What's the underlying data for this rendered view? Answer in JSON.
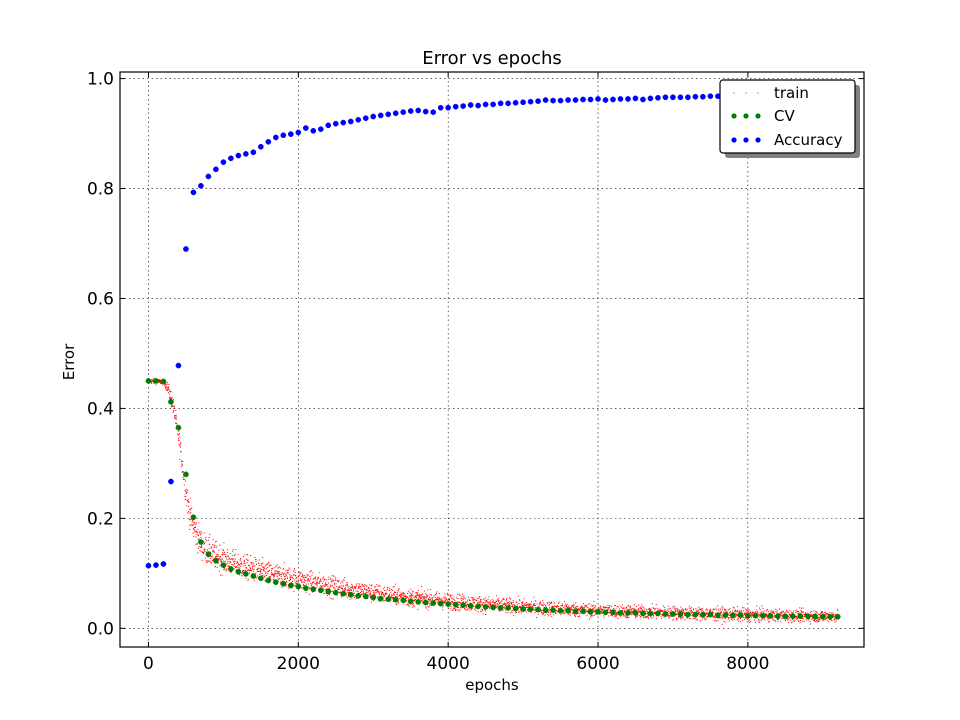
{
  "chart_data": {
    "type": "scatter",
    "title": "Error vs epochs",
    "xlabel": "epochs",
    "ylabel": "Error",
    "xlim": [
      -380,
      9550
    ],
    "ylim": [
      -0.034,
      1.012
    ],
    "xticks": [
      0,
      2000,
      4000,
      6000,
      8000
    ],
    "xtick_labels": [
      "0",
      "2000",
      "4000",
      "6000",
      "8000"
    ],
    "yticks": [
      0.0,
      0.2,
      0.4,
      0.6,
      0.8,
      1.0
    ],
    "ytick_labels": [
      "0.0",
      "0.2",
      "0.4",
      "0.6",
      "0.8",
      "1.0"
    ],
    "grid": true,
    "legend_position": "top-right",
    "series": [
      {
        "name": "train",
        "color": "#ff0000",
        "marker": "point",
        "x": [
          0,
          100,
          200,
          250,
          300,
          350,
          400,
          450,
          500,
          550,
          600,
          650,
          700,
          800,
          900,
          1000,
          1200,
          1400,
          1600,
          1800,
          2000,
          2500,
          3000,
          3500,
          4000,
          4500,
          5000,
          5500,
          6000,
          6500,
          7000,
          7500,
          8000,
          8500,
          9000,
          9200
        ],
        "y": [
          0.45,
          0.449,
          0.448,
          0.44,
          0.42,
          0.39,
          0.35,
          0.3,
          0.25,
          0.21,
          0.185,
          0.17,
          0.155,
          0.14,
          0.132,
          0.125,
          0.115,
          0.107,
          0.1,
          0.094,
          0.088,
          0.075,
          0.064,
          0.056,
          0.049,
          0.043,
          0.039,
          0.035,
          0.032,
          0.03,
          0.028,
          0.026,
          0.024,
          0.023,
          0.022,
          0.022
        ],
        "spread": [
          0.004,
          0.004,
          0.004,
          0.008,
          0.012,
          0.014,
          0.016,
          0.018,
          0.02,
          0.022,
          0.022,
          0.022,
          0.022,
          0.022,
          0.021,
          0.02,
          0.019,
          0.018,
          0.017,
          0.017,
          0.016,
          0.015,
          0.014,
          0.013,
          0.012,
          0.012,
          0.011,
          0.011,
          0.01,
          0.01,
          0.01,
          0.01,
          0.01,
          0.009,
          0.009,
          0.009
        ]
      },
      {
        "name": "CV",
        "color": "#007f00",
        "marker": "circle",
        "x": [
          0,
          100,
          200,
          300,
          400,
          500,
          600,
          700,
          800,
          900,
          1000,
          1100,
          1200,
          1300,
          1400,
          1500,
          1600,
          1700,
          1800,
          1900,
          2000,
          2100,
          2200,
          2300,
          2400,
          2500,
          2600,
          2700,
          2800,
          2900,
          3000,
          3100,
          3200,
          3300,
          3400,
          3500,
          3600,
          3700,
          3800,
          3900,
          4000,
          4100,
          4200,
          4300,
          4400,
          4500,
          4600,
          4700,
          4800,
          4900,
          5000,
          5100,
          5200,
          5300,
          5400,
          5500,
          5600,
          5700,
          5800,
          5900,
          6000,
          6100,
          6200,
          6300,
          6400,
          6500,
          6600,
          6700,
          6800,
          6900,
          7000,
          7100,
          7200,
          7300,
          7400,
          7500,
          7600,
          7700,
          7800,
          7900,
          8000,
          8100,
          8200,
          8300,
          8400,
          8500,
          8600,
          8700,
          8800,
          8900,
          9000,
          9100,
          9200
        ],
        "y": [
          0.45,
          0.45,
          0.449,
          0.412,
          0.365,
          0.28,
          0.202,
          0.157,
          0.135,
          0.123,
          0.115,
          0.108,
          0.103,
          0.099,
          0.095,
          0.091,
          0.087,
          0.084,
          0.081,
          0.078,
          0.076,
          0.073,
          0.071,
          0.069,
          0.067,
          0.065,
          0.063,
          0.061,
          0.059,
          0.058,
          0.056,
          0.054,
          0.053,
          0.052,
          0.051,
          0.049,
          0.048,
          0.047,
          0.046,
          0.045,
          0.044,
          0.043,
          0.042,
          0.041,
          0.04,
          0.039,
          0.038,
          0.037,
          0.037,
          0.036,
          0.035,
          0.035,
          0.034,
          0.033,
          0.033,
          0.032,
          0.032,
          0.031,
          0.031,
          0.03,
          0.03,
          0.029,
          0.029,
          0.028,
          0.028,
          0.028,
          0.027,
          0.027,
          0.027,
          0.026,
          0.026,
          0.026,
          0.025,
          0.025,
          0.025,
          0.025,
          0.024,
          0.024,
          0.024,
          0.024,
          0.023,
          0.023,
          0.023,
          0.023,
          0.022,
          0.022,
          0.022,
          0.022,
          0.022,
          0.021,
          0.021,
          0.021,
          0.021
        ]
      },
      {
        "name": "Accuracy",
        "color": "#0000ff",
        "marker": "circle",
        "x": [
          0,
          100,
          200,
          300,
          400,
          500,
          600,
          700,
          800,
          900,
          1000,
          1100,
          1200,
          1300,
          1400,
          1500,
          1600,
          1700,
          1800,
          1900,
          2000,
          2100,
          2200,
          2300,
          2400,
          2500,
          2600,
          2700,
          2800,
          2900,
          3000,
          3100,
          3200,
          3300,
          3400,
          3500,
          3600,
          3700,
          3800,
          3900,
          4000,
          4100,
          4200,
          4300,
          4400,
          4500,
          4600,
          4700,
          4800,
          4900,
          5000,
          5100,
          5200,
          5300,
          5400,
          5500,
          5600,
          5700,
          5800,
          5900,
          6000,
          6100,
          6200,
          6300,
          6400,
          6500,
          6600,
          6700,
          6800,
          6900,
          7000,
          7100,
          7200,
          7300,
          7400,
          7500,
          7600,
          7700,
          7800
        ],
        "y": [
          0.114,
          0.115,
          0.117,
          0.267,
          0.478,
          0.69,
          0.793,
          0.805,
          0.822,
          0.835,
          0.848,
          0.855,
          0.86,
          0.863,
          0.866,
          0.876,
          0.885,
          0.893,
          0.897,
          0.899,
          0.902,
          0.91,
          0.905,
          0.908,
          0.915,
          0.918,
          0.92,
          0.922,
          0.925,
          0.928,
          0.931,
          0.933,
          0.935,
          0.937,
          0.939,
          0.941,
          0.942,
          0.94,
          0.939,
          0.947,
          0.947,
          0.949,
          0.95,
          0.952,
          0.951,
          0.953,
          0.953,
          0.955,
          0.955,
          0.956,
          0.957,
          0.958,
          0.959,
          0.961,
          0.96,
          0.96,
          0.961,
          0.961,
          0.962,
          0.962,
          0.963,
          0.961,
          0.962,
          0.963,
          0.963,
          0.964,
          0.962,
          0.964,
          0.965,
          0.966,
          0.966,
          0.966,
          0.966,
          0.967,
          0.967,
          0.968,
          0.968,
          0.969,
          0.969
        ]
      }
    ]
  }
}
